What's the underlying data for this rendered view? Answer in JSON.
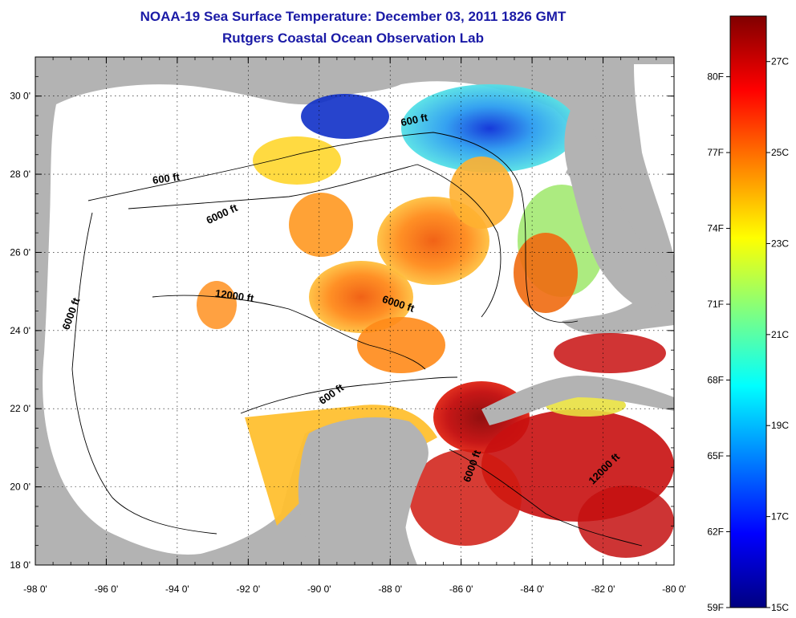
{
  "header": {
    "title": "NOAA-19 Sea Surface Temperature:  December 03, 2011 1826 GMT",
    "subtitle": "Rutgers Coastal Ocean Observation Lab"
  },
  "map": {
    "lon_range": [
      -98,
      -80
    ],
    "lat_range": [
      18,
      31
    ],
    "lon_ticks": [
      {
        "value": -98,
        "label": "-98 0'"
      },
      {
        "value": -96,
        "label": "-96 0'"
      },
      {
        "value": -94,
        "label": "-94 0'"
      },
      {
        "value": -92,
        "label": "-92 0'"
      },
      {
        "value": -90,
        "label": "-90 0'"
      },
      {
        "value": -88,
        "label": "-88 0'"
      },
      {
        "value": -86,
        "label": "-86 0'"
      },
      {
        "value": -84,
        "label": "-84 0'"
      },
      {
        "value": -82,
        "label": "-82 0'"
      },
      {
        "value": -80,
        "label": "-80 0'"
      }
    ],
    "lat_ticks": [
      {
        "value": 18,
        "label": "18 0'"
      },
      {
        "value": 20,
        "label": "20 0'"
      },
      {
        "value": 22,
        "label": "22 0'"
      },
      {
        "value": 24,
        "label": "24 0'"
      },
      {
        "value": 26,
        "label": "26 0'"
      },
      {
        "value": 28,
        "label": "28 0'"
      },
      {
        "value": 30,
        "label": "30 0'"
      }
    ],
    "contour_labels": [
      {
        "text": "600 ft",
        "lon": -87.3,
        "lat": 29.3,
        "angle": -12
      },
      {
        "text": "600 ft",
        "lon": -94.3,
        "lat": 27.8,
        "angle": -8
      },
      {
        "text": "6000 ft",
        "lon": -92.7,
        "lat": 26.9,
        "angle": -25
      },
      {
        "text": "6000 ft",
        "lon": -96.9,
        "lat": 24.4,
        "angle": -70
      },
      {
        "text": "12000 ft",
        "lon": -92.4,
        "lat": 24.8,
        "angle": 8
      },
      {
        "text": "6000 ft",
        "lon": -87.8,
        "lat": 24.6,
        "angle": 18
      },
      {
        "text": "600 ft",
        "lon": -89.6,
        "lat": 22.3,
        "angle": -35
      },
      {
        "text": "6000 ft",
        "lon": -85.6,
        "lat": 20.5,
        "angle": -70
      },
      {
        "text": "12000 ft",
        "lon": -81.9,
        "lat": 20.4,
        "angle": -45
      }
    ],
    "colors": {
      "land": "#b3b3b3",
      "cloud": "#ffffff",
      "contour": "#000000"
    }
  },
  "colorbar": {
    "temp_range_c": [
      15,
      28
    ],
    "celsius_labels": [
      {
        "value": 27,
        "label": "27C"
      },
      {
        "value": 25,
        "label": "25C"
      },
      {
        "value": 23,
        "label": "23C"
      },
      {
        "value": 21,
        "label": "21C"
      },
      {
        "value": 19,
        "label": "19C"
      },
      {
        "value": 17,
        "label": "17C"
      },
      {
        "value": 15,
        "label": "15C"
      }
    ],
    "fahrenheit_labels": [
      {
        "value": 80,
        "label": "80F"
      },
      {
        "value": 77,
        "label": "77F"
      },
      {
        "value": 74,
        "label": "74F"
      },
      {
        "value": 71,
        "label": "71F"
      },
      {
        "value": 68,
        "label": "68F"
      },
      {
        "value": 65,
        "label": "65F"
      },
      {
        "value": 62,
        "label": "62F"
      },
      {
        "value": 59,
        "label": "59F"
      }
    ],
    "gradient": [
      "#800000",
      "#ff0000",
      "#ff8000",
      "#ffff00",
      "#80ff80",
      "#00ffff",
      "#0080ff",
      "#0000ff",
      "#000080"
    ]
  }
}
